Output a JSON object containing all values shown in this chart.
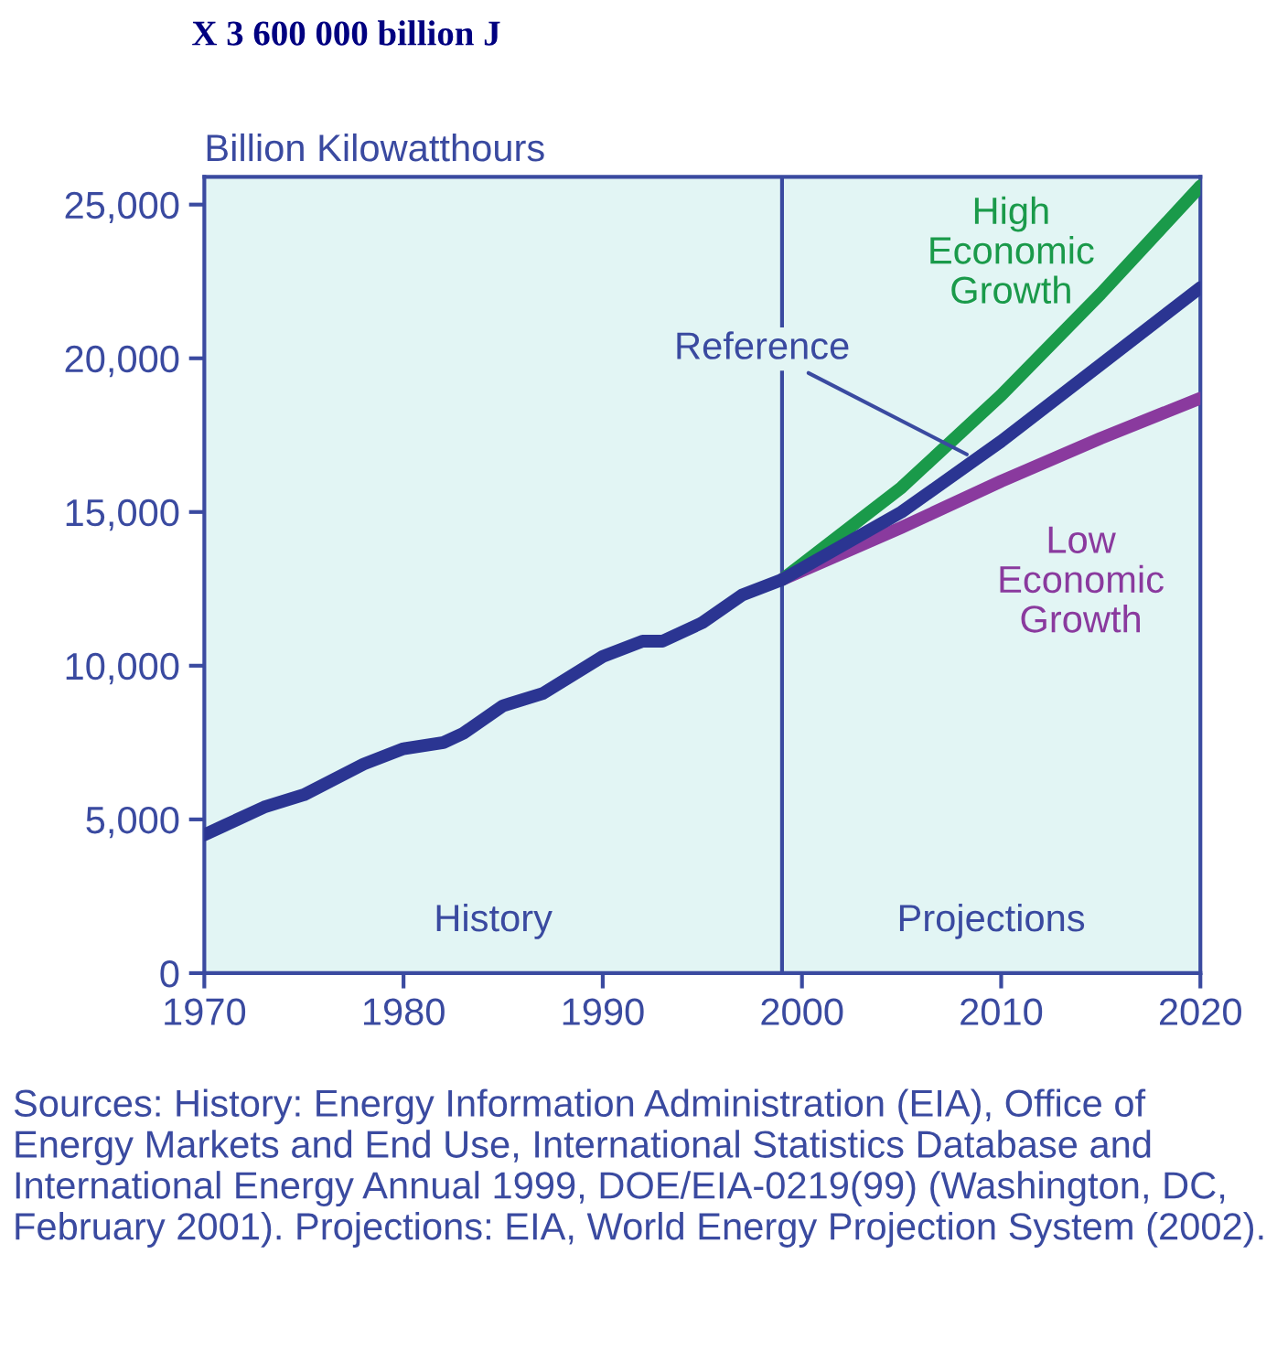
{
  "chart_data": {
    "type": "line",
    "title": "X 3 600 000 billion J",
    "ylabel": "Billion Kilowatthours",
    "series": [
      {
        "name": "Reference",
        "color": "#2b3592",
        "x": [
          1970,
          1971,
          1973,
          1975,
          1978,
          1980,
          1982,
          1983,
          1985,
          1987,
          1990,
          1992,
          1993,
          1995,
          1997,
          1999,
          2005,
          2010,
          2015,
          2020
        ],
        "values": [
          4500,
          4800,
          5400,
          5800,
          6800,
          7300,
          7500,
          7800,
          8700,
          9100,
          10300,
          10800,
          10800,
          11400,
          12300,
          12800,
          15000,
          17300,
          19800,
          22300
        ]
      },
      {
        "name": "High Economic Growth",
        "color": "#1a9a4a",
        "x": [
          1999,
          2005,
          2010,
          2015,
          2020
        ],
        "values": [
          12800,
          15800,
          18800,
          22100,
          25600
        ]
      },
      {
        "name": "Low Economic Growth",
        "color": "#8a3a9e",
        "x": [
          1999,
          2005,
          2010,
          2015,
          2020
        ],
        "values": [
          12800,
          14500,
          16000,
          17400,
          18700
        ]
      }
    ],
    "xlim": [
      1970,
      2020
    ],
    "xticks": [
      1970,
      1980,
      1990,
      2000,
      2010,
      2020
    ],
    "ylim": [
      0,
      25900
    ],
    "yticks": [
      {
        "value": 0,
        "label": "0"
      },
      {
        "value": 5000,
        "label": "5,000"
      },
      {
        "value": 10000,
        "label": "10,000"
      },
      {
        "value": 15000,
        "label": "15,000"
      },
      {
        "value": 20000,
        "label": "20,000"
      },
      {
        "value": 25000,
        "label": "25,000"
      }
    ],
    "ref_lines": [
      {
        "axis": "x",
        "value": 1999,
        "color": "#3a4aa0"
      }
    ],
    "annotations": [
      "History",
      "Projections",
      "Sources: History: Energy Information Administration (EIA), Office of Energy Markets and End Use, International Statistics Database and International Energy Annual 1999, DOE/EIA-0219(99) (Washington, DC, February 2001). Projections: EIA, World Energy Projection System (2002)."
    ],
    "grid": false,
    "marker": "none",
    "line_style": "solid"
  }
}
